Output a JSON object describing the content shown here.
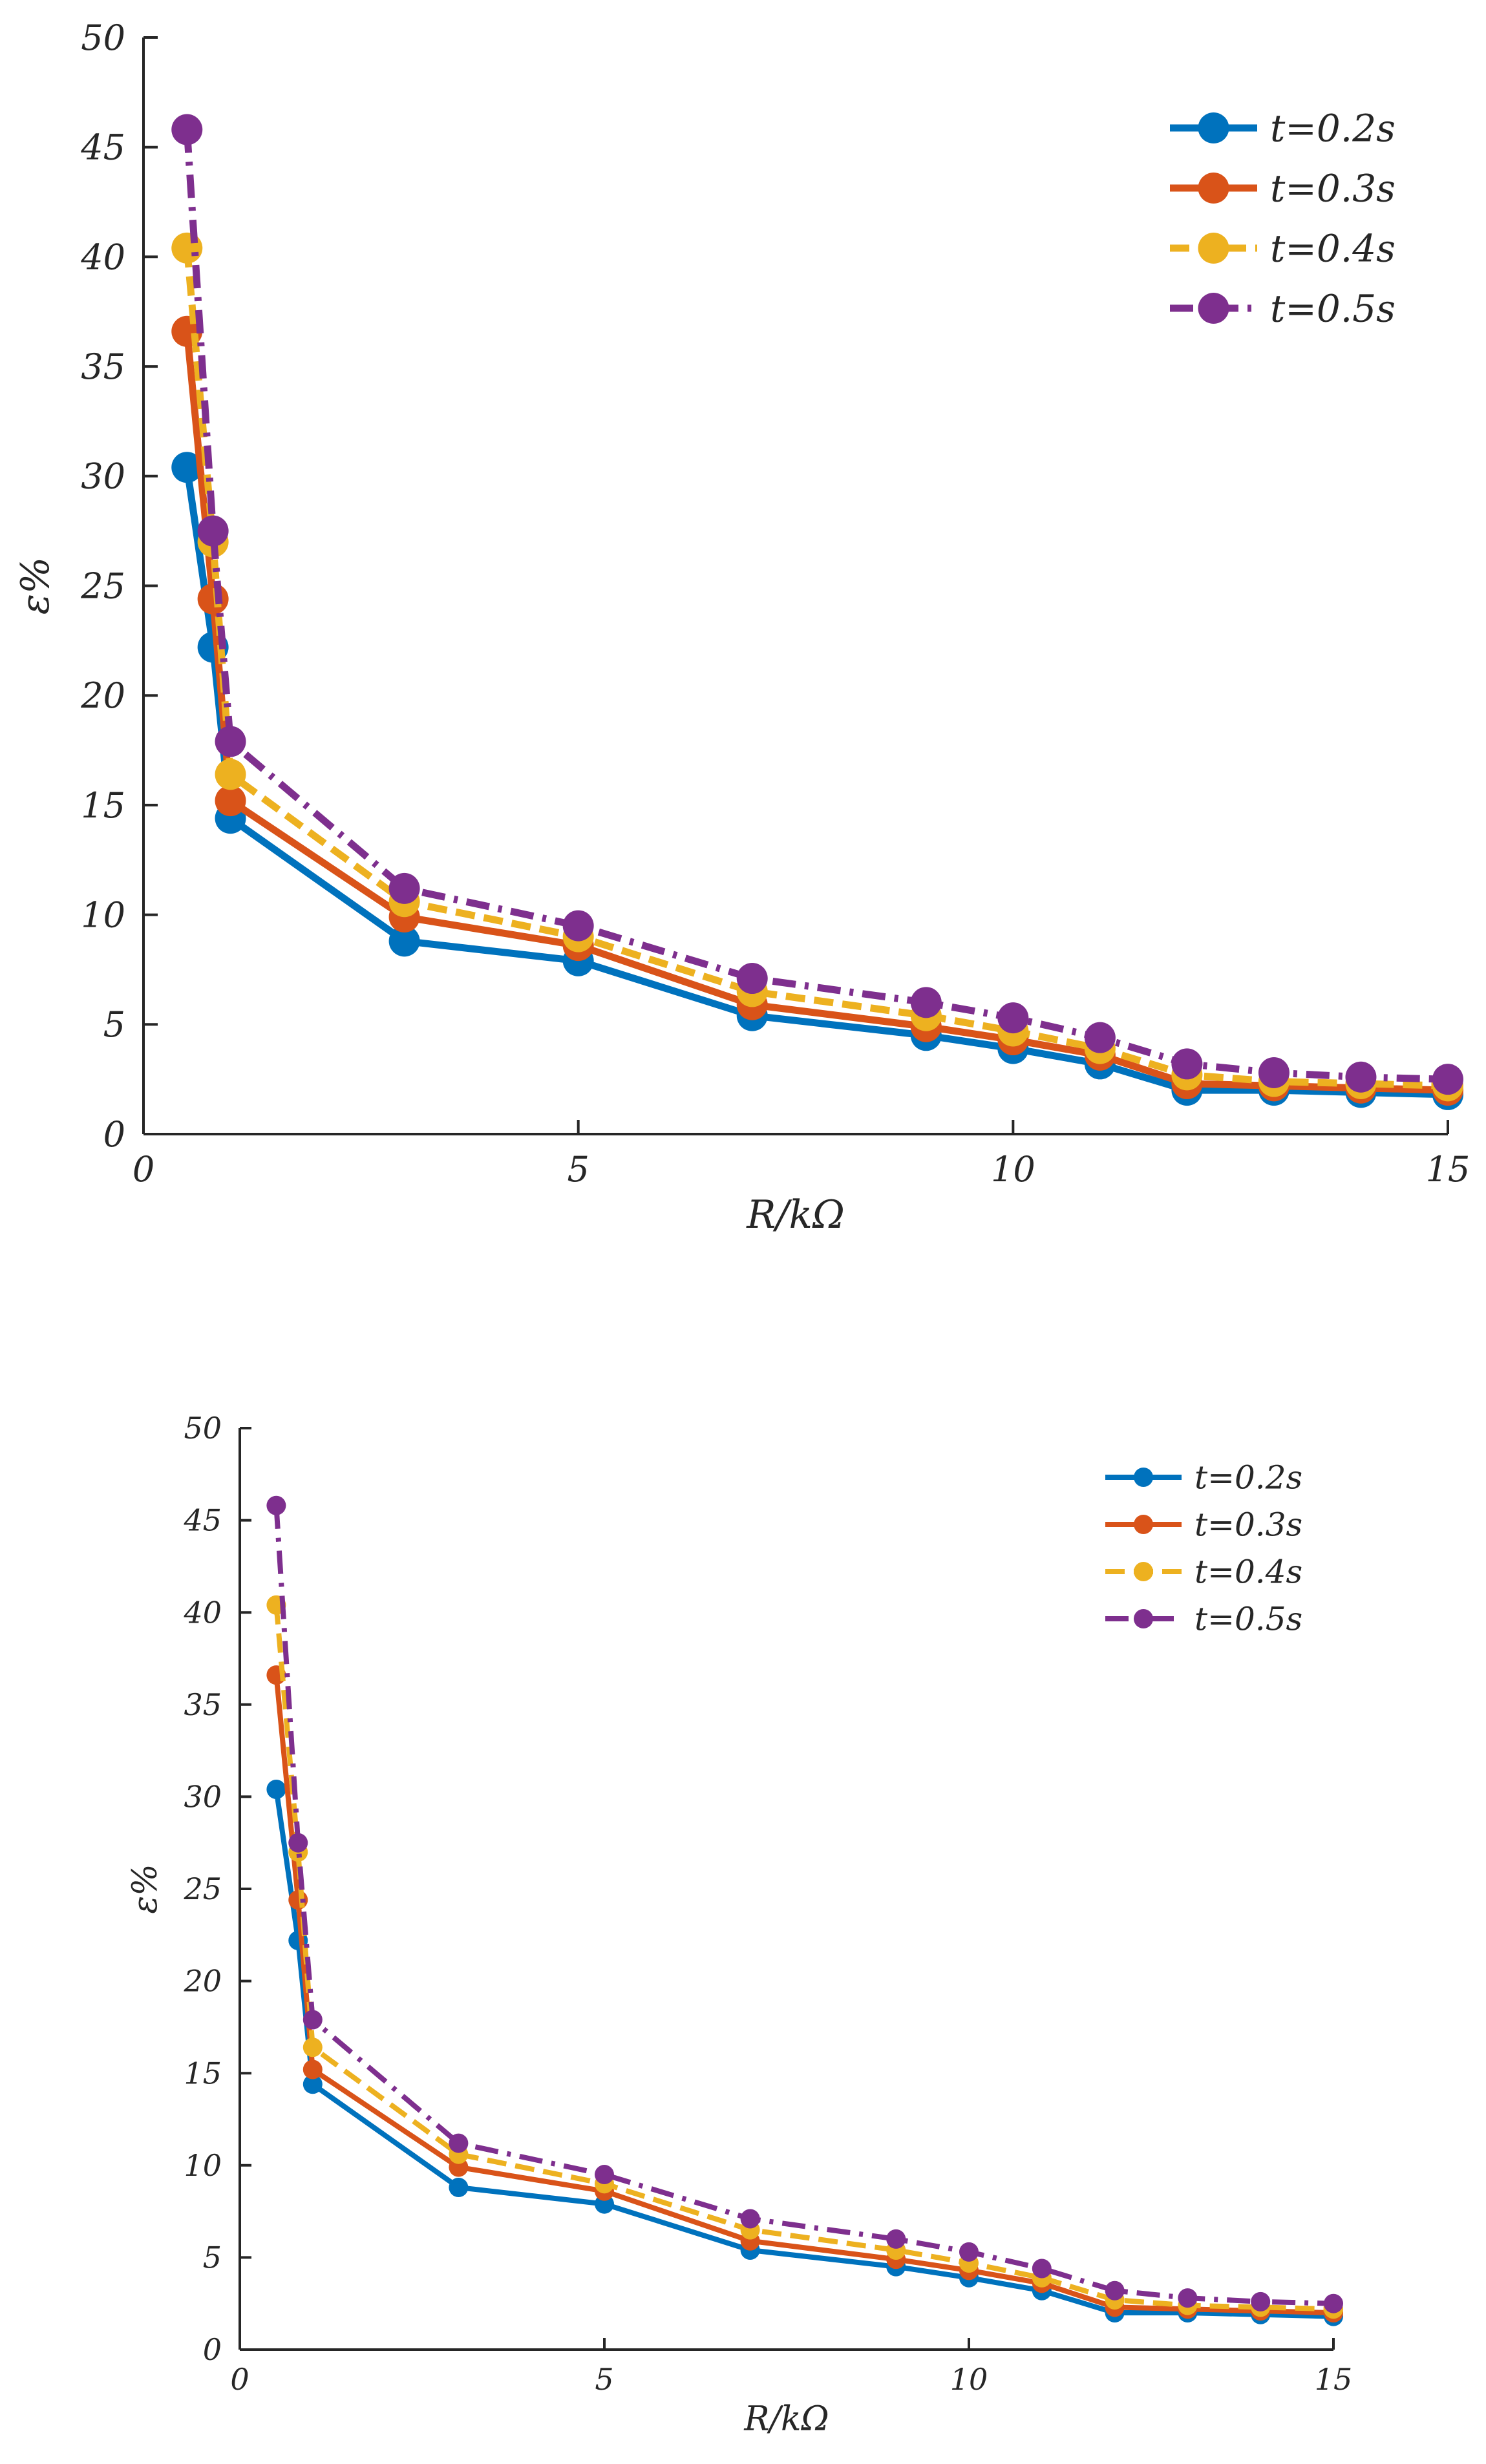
{
  "chart_data": [
    {
      "id": "chart-top",
      "type": "line",
      "xlabel": "R/kΩ",
      "ylabel": "ε%",
      "xlim": [
        0,
        15
      ],
      "ylim": [
        0,
        50
      ],
      "xticks": [
        0,
        5,
        10,
        15
      ],
      "yticks": [
        0,
        5,
        10,
        15,
        20,
        25,
        30,
        35,
        40,
        45,
        50
      ],
      "legend_position": "top-right",
      "grid": false,
      "x": [
        0.5,
        0.8,
        1,
        3,
        5,
        7,
        9,
        10,
        11,
        12,
        13,
        14,
        15
      ],
      "series": [
        {
          "name": "t=0.2s",
          "color": "#0072BD",
          "dash": "solid",
          "values": [
            30.4,
            22.2,
            14.4,
            8.8,
            7.9,
            5.4,
            4.5,
            3.9,
            3.2,
            2.0,
            2.0,
            1.9,
            1.8
          ]
        },
        {
          "name": "t=0.3s",
          "color": "#D95319",
          "dash": "solid",
          "values": [
            36.6,
            24.4,
            15.2,
            9.9,
            8.6,
            5.9,
            4.9,
            4.3,
            3.6,
            2.3,
            2.2,
            2.1,
            2.0
          ]
        },
        {
          "name": "t=0.4s",
          "color": "#EDB120",
          "dash": "dashed",
          "values": [
            40.4,
            27.0,
            16.4,
            10.6,
            9.0,
            6.5,
            5.4,
            4.7,
            3.9,
            2.7,
            2.4,
            2.3,
            2.2
          ]
        },
        {
          "name": "t=0.5s",
          "color": "#7E2F8E",
          "dash": "dashdot",
          "values": [
            45.8,
            27.5,
            17.9,
            11.2,
            9.5,
            7.1,
            6.0,
            5.3,
            4.4,
            3.2,
            2.8,
            2.6,
            2.5
          ]
        }
      ]
    },
    {
      "id": "chart-bottom",
      "type": "line",
      "xlabel": "R/kΩ",
      "ylabel": "ε%",
      "xlim": [
        0,
        15
      ],
      "ylim": [
        0,
        50
      ],
      "xticks": [
        0,
        5,
        10,
        15
      ],
      "yticks": [
        0,
        5,
        10,
        15,
        20,
        25,
        30,
        35,
        40,
        45,
        50
      ],
      "legend_position": "top-right",
      "grid": false,
      "x": [
        0.5,
        0.8,
        1,
        3,
        5,
        7,
        9,
        10,
        11,
        12,
        13,
        14,
        15
      ],
      "series": [
        {
          "name": "t=0.2s",
          "color": "#0072BD",
          "dash": "solid",
          "values": [
            30.4,
            22.2,
            14.4,
            8.8,
            7.9,
            5.4,
            4.5,
            3.9,
            3.2,
            2.0,
            2.0,
            1.9,
            1.8
          ]
        },
        {
          "name": "t=0.3s",
          "color": "#D95319",
          "dash": "solid",
          "values": [
            36.6,
            24.4,
            15.2,
            9.9,
            8.6,
            5.9,
            4.9,
            4.3,
            3.6,
            2.3,
            2.2,
            2.1,
            2.0
          ]
        },
        {
          "name": "t=0.4s",
          "color": "#EDB120",
          "dash": "dashed",
          "values": [
            40.4,
            27.0,
            16.4,
            10.6,
            9.0,
            6.5,
            5.4,
            4.7,
            3.9,
            2.7,
            2.4,
            2.3,
            2.2
          ]
        },
        {
          "name": "t=0.5s",
          "color": "#7E2F8E",
          "dash": "dashdot",
          "values": [
            45.8,
            27.5,
            17.9,
            11.2,
            9.5,
            7.1,
            6.0,
            5.3,
            4.4,
            3.2,
            2.8,
            2.6,
            2.5
          ]
        }
      ]
    }
  ]
}
